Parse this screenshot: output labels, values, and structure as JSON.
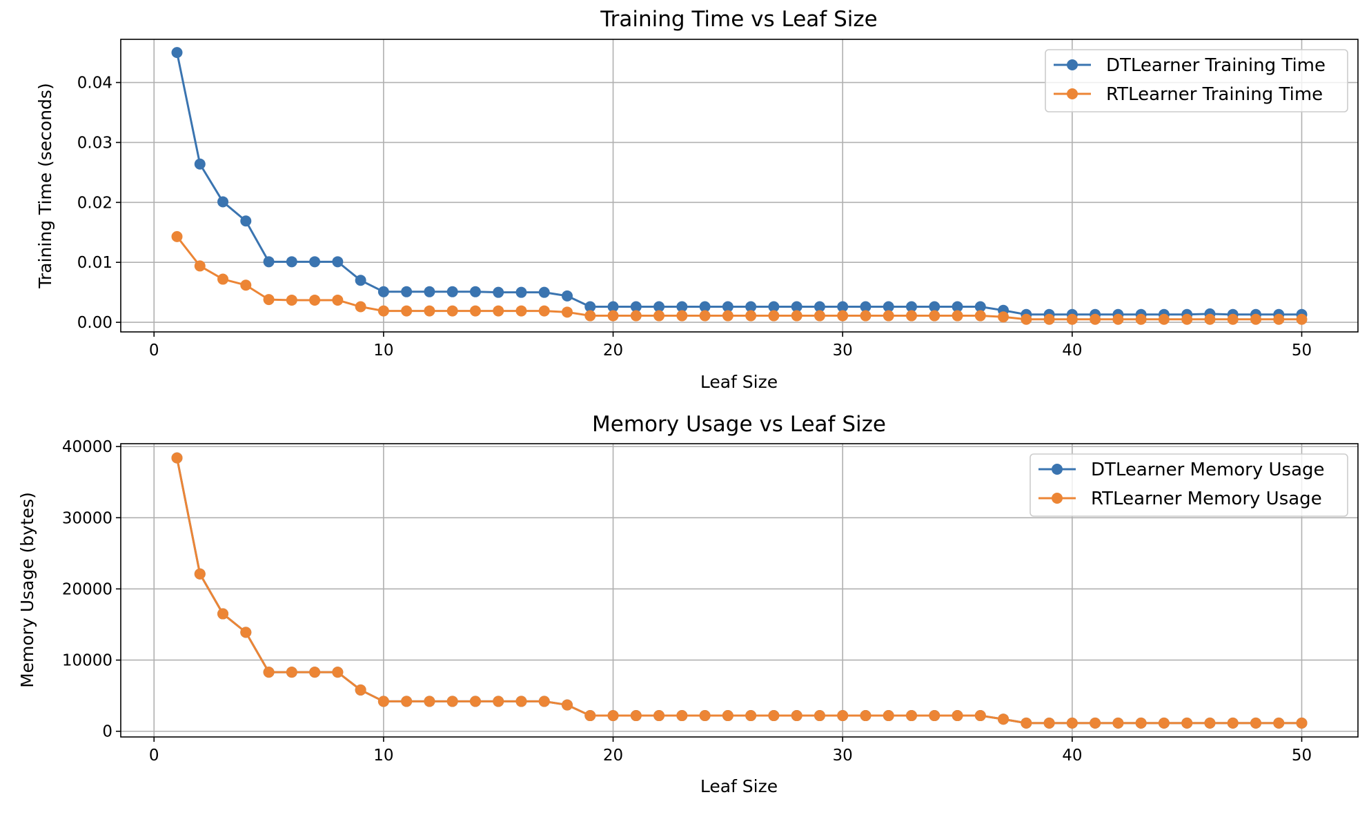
{
  "colors": {
    "dt": "#3a74b0",
    "rt": "#ec8535",
    "grid": "#b0b0b0",
    "axis": "#000000"
  },
  "chart_data": [
    {
      "type": "line",
      "title": "Training Time vs Leaf Size",
      "xlabel": "Leaf Size",
      "ylabel": "Training Time (seconds)",
      "xlim": [
        -1.45,
        52.45
      ],
      "ylim": [
        -0.0016,
        0.0472
      ],
      "xticks": [
        0,
        10,
        20,
        30,
        40,
        50
      ],
      "yticks": [
        0.0,
        0.01,
        0.02,
        0.03,
        0.04
      ],
      "ytick_labels": [
        "0.00",
        "0.01",
        "0.02",
        "0.03",
        "0.04"
      ],
      "grid": true,
      "legend": "top-right",
      "x": [
        1,
        2,
        3,
        4,
        5,
        6,
        7,
        8,
        9,
        10,
        11,
        12,
        13,
        14,
        15,
        16,
        17,
        18,
        19,
        20,
        21,
        22,
        23,
        24,
        25,
        26,
        27,
        28,
        29,
        30,
        31,
        32,
        33,
        34,
        35,
        36,
        37,
        38,
        39,
        40,
        41,
        42,
        43,
        44,
        45,
        46,
        47,
        48,
        49,
        50
      ],
      "series": [
        {
          "name": "DTLearner Training Time",
          "color": "#3a74b0",
          "values": [
            0.045,
            0.0264,
            0.0201,
            0.0169,
            0.0101,
            0.0101,
            0.0101,
            0.0101,
            0.007,
            0.0051,
            0.0051,
            0.0051,
            0.0051,
            0.0051,
            0.005,
            0.005,
            0.005,
            0.0044,
            0.0026,
            0.0026,
            0.0026,
            0.0026,
            0.0026,
            0.0026,
            0.0026,
            0.0026,
            0.0026,
            0.0026,
            0.0026,
            0.0026,
            0.0026,
            0.0026,
            0.0026,
            0.0026,
            0.0026,
            0.0026,
            0.002,
            0.0013,
            0.0013,
            0.0013,
            0.0013,
            0.0013,
            0.0013,
            0.0013,
            0.0013,
            0.0014,
            0.0013,
            0.0013,
            0.0013,
            0.0013
          ]
        },
        {
          "name": "RTLearner Training Time",
          "color": "#ec8535",
          "values": [
            0.0143,
            0.0094,
            0.0072,
            0.0062,
            0.0038,
            0.0037,
            0.0037,
            0.0037,
            0.0026,
            0.0019,
            0.0019,
            0.0019,
            0.0019,
            0.0019,
            0.0019,
            0.0019,
            0.0019,
            0.0017,
            0.0011,
            0.0011,
            0.0011,
            0.0011,
            0.0011,
            0.0011,
            0.0011,
            0.0011,
            0.0011,
            0.0011,
            0.0011,
            0.0011,
            0.0011,
            0.0011,
            0.0011,
            0.0011,
            0.0011,
            0.0011,
            0.0009,
            0.0005,
            0.0005,
            0.0005,
            0.0005,
            0.0005,
            0.0005,
            0.0005,
            0.0005,
            0.0005,
            0.0005,
            0.0005,
            0.0005,
            0.0005
          ]
        }
      ]
    },
    {
      "type": "line",
      "title": "Memory Usage vs Leaf Size",
      "xlabel": "Leaf Size",
      "ylabel": "Memory Usage (bytes)",
      "xlim": [
        -1.45,
        52.45
      ],
      "ylim": [
        -800,
        40400
      ],
      "xticks": [
        0,
        10,
        20,
        30,
        40,
        50
      ],
      "yticks": [
        0,
        10000,
        20000,
        30000,
        40000
      ],
      "ytick_labels": [
        "0",
        "10000",
        "20000",
        "30000",
        "40000"
      ],
      "grid": true,
      "legend": "top-right",
      "x": [
        1,
        2,
        3,
        4,
        5,
        6,
        7,
        8,
        9,
        10,
        11,
        12,
        13,
        14,
        15,
        16,
        17,
        18,
        19,
        20,
        21,
        22,
        23,
        24,
        25,
        26,
        27,
        28,
        29,
        30,
        31,
        32,
        33,
        34,
        35,
        36,
        37,
        38,
        39,
        40,
        41,
        42,
        43,
        44,
        45,
        46,
        47,
        48,
        49,
        50
      ],
      "series": [
        {
          "name": "DTLearner Memory Usage",
          "color": "#3a74b0",
          "values": [
            38400,
            22100,
            16500,
            13900,
            8300,
            8300,
            8300,
            8300,
            5800,
            4200,
            4200,
            4200,
            4200,
            4200,
            4200,
            4200,
            4200,
            3700,
            2200,
            2200,
            2200,
            2200,
            2200,
            2200,
            2200,
            2200,
            2200,
            2200,
            2200,
            2200,
            2200,
            2200,
            2200,
            2200,
            2200,
            2200,
            1700,
            1150,
            1150,
            1150,
            1150,
            1150,
            1150,
            1150,
            1150,
            1150,
            1150,
            1150,
            1150,
            1150
          ]
        },
        {
          "name": "RTLearner Memory Usage",
          "color": "#ec8535",
          "values": [
            38400,
            22100,
            16500,
            13900,
            8300,
            8300,
            8300,
            8300,
            5800,
            4200,
            4200,
            4200,
            4200,
            4200,
            4200,
            4200,
            4200,
            3700,
            2200,
            2200,
            2200,
            2200,
            2200,
            2200,
            2200,
            2200,
            2200,
            2200,
            2200,
            2200,
            2200,
            2200,
            2200,
            2200,
            2200,
            2200,
            1700,
            1150,
            1150,
            1150,
            1150,
            1150,
            1150,
            1150,
            1150,
            1150,
            1150,
            1150,
            1150,
            1150
          ]
        }
      ]
    }
  ]
}
